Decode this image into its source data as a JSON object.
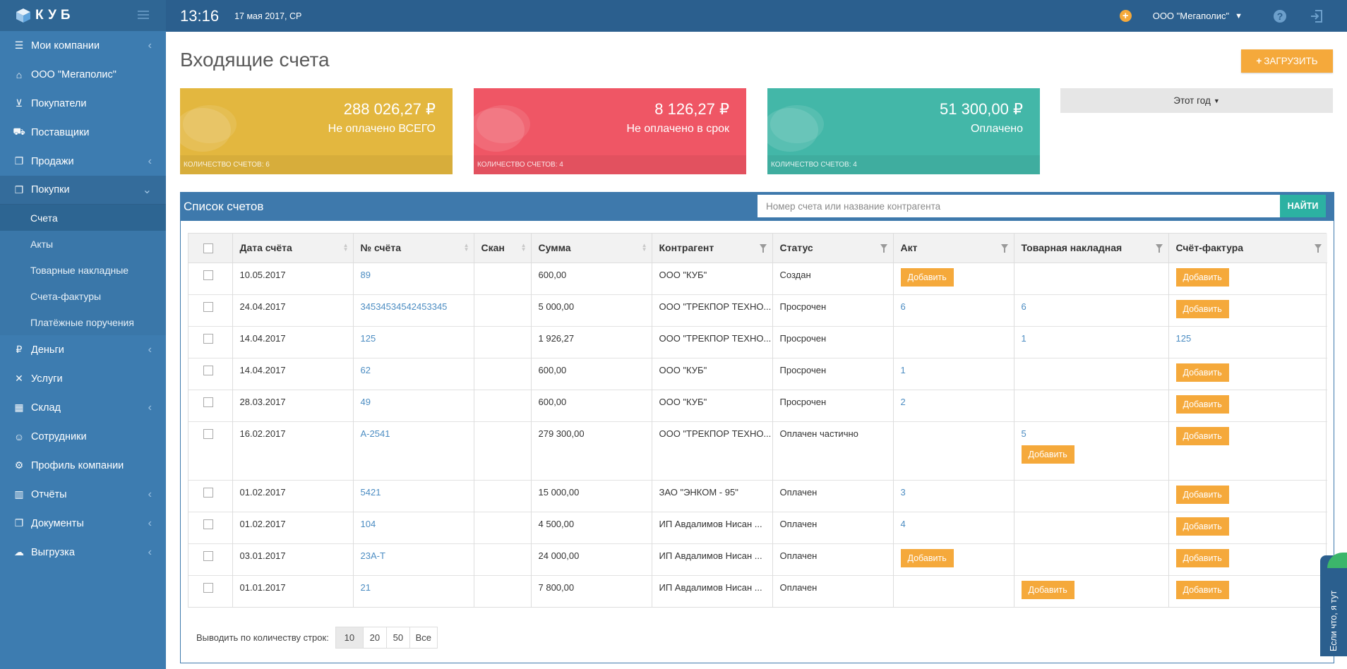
{
  "app": {
    "logo_text": "КУБ"
  },
  "topbar": {
    "time": "13:16",
    "date": "17 мая 2017, СР",
    "company": "ООО \"Мегаполис\""
  },
  "sidebar": {
    "items": [
      {
        "label": "Мои компании",
        "icon": "list-icon",
        "chevron": "‹"
      },
      {
        "label": "ООО \"Мегаполис\"",
        "icon": "home-icon",
        "chevron": ""
      },
      {
        "label": "Покупатели",
        "icon": "cart-icon",
        "chevron": ""
      },
      {
        "label": "Поставщики",
        "icon": "truck-icon",
        "chevron": ""
      },
      {
        "label": "Продажи",
        "icon": "documents-icon",
        "chevron": "‹"
      },
      {
        "label": "Покупки",
        "icon": "documents-icon",
        "chevron": "⌄"
      }
    ],
    "subitems": [
      "Счета",
      "Акты",
      "Товарные накладные",
      "Счета-фактуры",
      "Платёжные поручения"
    ],
    "items2": [
      {
        "label": "Деньги",
        "icon": "ruble-icon",
        "chevron": "‹"
      },
      {
        "label": "Услуги",
        "icon": "wrench-icon",
        "chevron": ""
      },
      {
        "label": "Склад",
        "icon": "boxes-icon",
        "chevron": "‹"
      },
      {
        "label": "Сотрудники",
        "icon": "users-icon",
        "chevron": ""
      },
      {
        "label": "Профиль компании",
        "icon": "gear-icon",
        "chevron": ""
      },
      {
        "label": "Отчёты",
        "icon": "chart-icon",
        "chevron": "‹"
      },
      {
        "label": "Документы",
        "icon": "documents-icon",
        "chevron": "‹"
      },
      {
        "label": "Выгрузка",
        "icon": "cloud-icon",
        "chevron": "‹"
      }
    ]
  },
  "page": {
    "title": "Входящие счета",
    "upload_label": "ЗАГРУЗИТЬ",
    "period": "Этот год"
  },
  "stats": [
    {
      "amount": "288 026,27 ₽",
      "label": "Не оплачено ВСЕГО",
      "count": "КОЛИЧЕСТВО СЧЕТОВ: 6",
      "color": "#e3b73f"
    },
    {
      "amount": "8 126,27 ₽",
      "label": "Не оплачено в срок",
      "count": "КОЛИЧЕСТВО СЧЕТОВ: 4",
      "color": "#ef5665"
    },
    {
      "amount": "51 300,00 ₽",
      "label": "Оплачено",
      "count": "КОЛИЧЕСТВО СЧЕТОВ: 4",
      "color": "#43b7a8"
    }
  ],
  "panel": {
    "title": "Список счетов",
    "search_placeholder": "Номер счета или название контрагента",
    "search_button": "НАЙТИ"
  },
  "table": {
    "columns": [
      "Дата счёта",
      "№ счёта",
      "Скан",
      "Сумма",
      "Контрагент",
      "Статус",
      "Акт",
      "Товарная накладная",
      "Счёт-фактура"
    ],
    "add_label": "Добавить",
    "rows": [
      {
        "date": "10.05.2017",
        "number": "89",
        "sum": "600,00",
        "counterparty": "ООО \"КУБ\"",
        "status": "Создан",
        "act": "",
        "act_add": true,
        "waybill": "",
        "waybill_add": false,
        "invoice": "",
        "invoice_add": true
      },
      {
        "date": "24.04.2017",
        "number": "34534534542453345",
        "sum": "5 000,00",
        "counterparty": "ООО \"ТРЕКПОР ТЕХНО...",
        "status": "Просрочен",
        "act": "6",
        "act_add": false,
        "waybill": "6",
        "waybill_add": false,
        "invoice": "",
        "invoice_add": true
      },
      {
        "date": "14.04.2017",
        "number": "125",
        "sum": "1 926,27",
        "counterparty": "ООО \"ТРЕКПОР ТЕХНО...",
        "status": "Просрочен",
        "act": "",
        "act_add": false,
        "waybill": "1",
        "waybill_add": false,
        "invoice": "125",
        "invoice_add": false
      },
      {
        "date": "14.04.2017",
        "number": "62",
        "sum": "600,00",
        "counterparty": "ООО \"КУБ\"",
        "status": "Просрочен",
        "act": "1",
        "act_add": false,
        "waybill": "",
        "waybill_add": false,
        "invoice": "",
        "invoice_add": true
      },
      {
        "date": "28.03.2017",
        "number": "49",
        "sum": "600,00",
        "counterparty": "ООО \"КУБ\"",
        "status": "Просрочен",
        "act": "2",
        "act_add": false,
        "waybill": "",
        "waybill_add": false,
        "invoice": "",
        "invoice_add": true
      },
      {
        "date": "16.02.2017",
        "number": "А-2541",
        "sum": "279 300,00",
        "counterparty": "ООО \"ТРЕКПОР ТЕХНО...",
        "status": "Оплачен частично",
        "act": "",
        "act_add": false,
        "waybill": "5",
        "waybill_add": true,
        "invoice": "",
        "invoice_add": true
      },
      {
        "date": "01.02.2017",
        "number": "5421",
        "sum": "15 000,00",
        "counterparty": "ЗАО \"ЭНКОМ - 95\"",
        "status": "Оплачен",
        "act": "3",
        "act_add": false,
        "waybill": "",
        "waybill_add": false,
        "invoice": "",
        "invoice_add": true
      },
      {
        "date": "01.02.2017",
        "number": "104",
        "sum": "4 500,00",
        "counterparty": "ИП Авдалимов Нисан ...",
        "status": "Оплачен",
        "act": "4",
        "act_add": false,
        "waybill": "",
        "waybill_add": false,
        "invoice": "",
        "invoice_add": true
      },
      {
        "date": "03.01.2017",
        "number": "23А-Т",
        "sum": "24 000,00",
        "counterparty": "ИП Авдалимов Нисан ...",
        "status": "Оплачен",
        "act": "",
        "act_add": true,
        "waybill": "",
        "waybill_add": false,
        "invoice": "",
        "invoice_add": true
      },
      {
        "date": "01.01.2017",
        "number": "21",
        "sum": "7 800,00",
        "counterparty": "ИП Авдалимов Нисан ...",
        "status": "Оплачен",
        "act": "",
        "act_add": false,
        "waybill": "",
        "waybill_add": true,
        "invoice": "",
        "invoice_add": true
      }
    ]
  },
  "pager": {
    "label": "Выводить по количеству строк:",
    "options": [
      "10",
      "20",
      "50",
      "Все"
    ],
    "selected": "10"
  },
  "feedback_tab": "Если что, я тут"
}
